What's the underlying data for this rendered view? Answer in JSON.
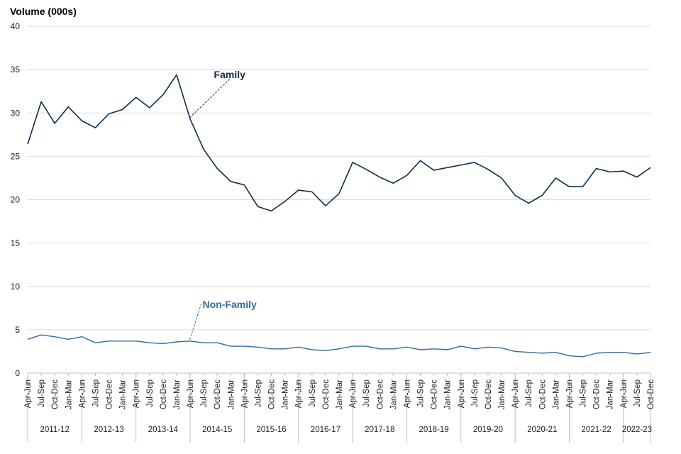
{
  "chart_data": {
    "type": "line",
    "title": "",
    "ylabel": "Volume (000s)",
    "xlabel": "",
    "ylim": [
      0,
      40
    ],
    "yticks": [
      0,
      5,
      10,
      15,
      20,
      25,
      30,
      35,
      40
    ],
    "grid": true,
    "quarters": [
      "Apr-Jun",
      "Jul-Sep",
      "Oct-Dec",
      "Jan-Mar"
    ],
    "years": [
      "2011-12",
      "2012-13",
      "2013-14",
      "2014-15",
      "2015-16",
      "2016-17",
      "2017-18",
      "2018-19",
      "2019-20",
      "2020-21",
      "2021-22",
      "2022-23"
    ],
    "categories": [
      "Apr-Jun",
      "Jul-Sep",
      "Oct-Dec",
      "Jan-Mar",
      "Apr-Jun",
      "Jul-Sep",
      "Oct-Dec",
      "Jan-Mar",
      "Apr-Jun",
      "Jul-Sep",
      "Oct-Dec",
      "Jan-Mar",
      "Apr-Jun",
      "Jul-Sep",
      "Oct-Dec",
      "Jan-Mar",
      "Apr-Jun",
      "Jul-Sep",
      "Oct-Dec",
      "Jan-Mar",
      "Apr-Jun",
      "Jul-Sep",
      "Oct-Dec",
      "Jan-Mar",
      "Apr-Jun",
      "Jul-Sep",
      "Oct-Dec",
      "Jan-Mar",
      "Apr-Jun",
      "Jul-Sep",
      "Oct-Dec",
      "Jan-Mar",
      "Apr-Jun",
      "Jul-Sep",
      "Oct-Dec",
      "Jan-Mar",
      "Apr-Jun",
      "Jul-Sep",
      "Oct-Dec",
      "Jan-Mar",
      "Apr-Jun",
      "Jul-Sep",
      "Oct-Dec",
      "Jan-Mar",
      "Apr-Jun",
      "Jul-Sep",
      "Oct-Dec"
    ],
    "series": [
      {
        "name": "Family",
        "color": "#0b2d4e",
        "label_anchor_index": 12,
        "values": [
          26.4,
          31.3,
          28.8,
          30.7,
          29.1,
          28.3,
          29.9,
          30.4,
          31.8,
          30.6,
          32.1,
          34.4,
          29.3,
          25.8,
          23.6,
          22.1,
          21.7,
          19.2,
          18.7,
          19.8,
          21.1,
          20.9,
          19.3,
          20.7,
          24.3,
          23.5,
          22.6,
          21.9,
          22.8,
          24.5,
          23.4,
          23.7,
          24.0,
          24.3,
          23.5,
          22.5,
          20.5,
          19.6,
          20.5,
          22.5,
          21.5,
          21.5,
          23.6,
          23.2,
          23.3,
          22.6,
          23.7
        ]
      },
      {
        "name": "Non-Family",
        "color": "#2e6aa6",
        "label_anchor_index": 12,
        "values": [
          3.9,
          4.4,
          4.2,
          3.9,
          4.2,
          3.5,
          3.7,
          3.7,
          3.7,
          3.5,
          3.4,
          3.6,
          3.7,
          3.5,
          3.5,
          3.1,
          3.1,
          3.0,
          2.8,
          2.8,
          3.0,
          2.7,
          2.6,
          2.8,
          3.1,
          3.1,
          2.8,
          2.8,
          3.0,
          2.7,
          2.8,
          2.7,
          3.1,
          2.8,
          3.0,
          2.9,
          2.5,
          2.4,
          2.3,
          2.4,
          2.0,
          1.9,
          2.3,
          2.4,
          2.4,
          2.2,
          2.4
        ]
      }
    ]
  }
}
